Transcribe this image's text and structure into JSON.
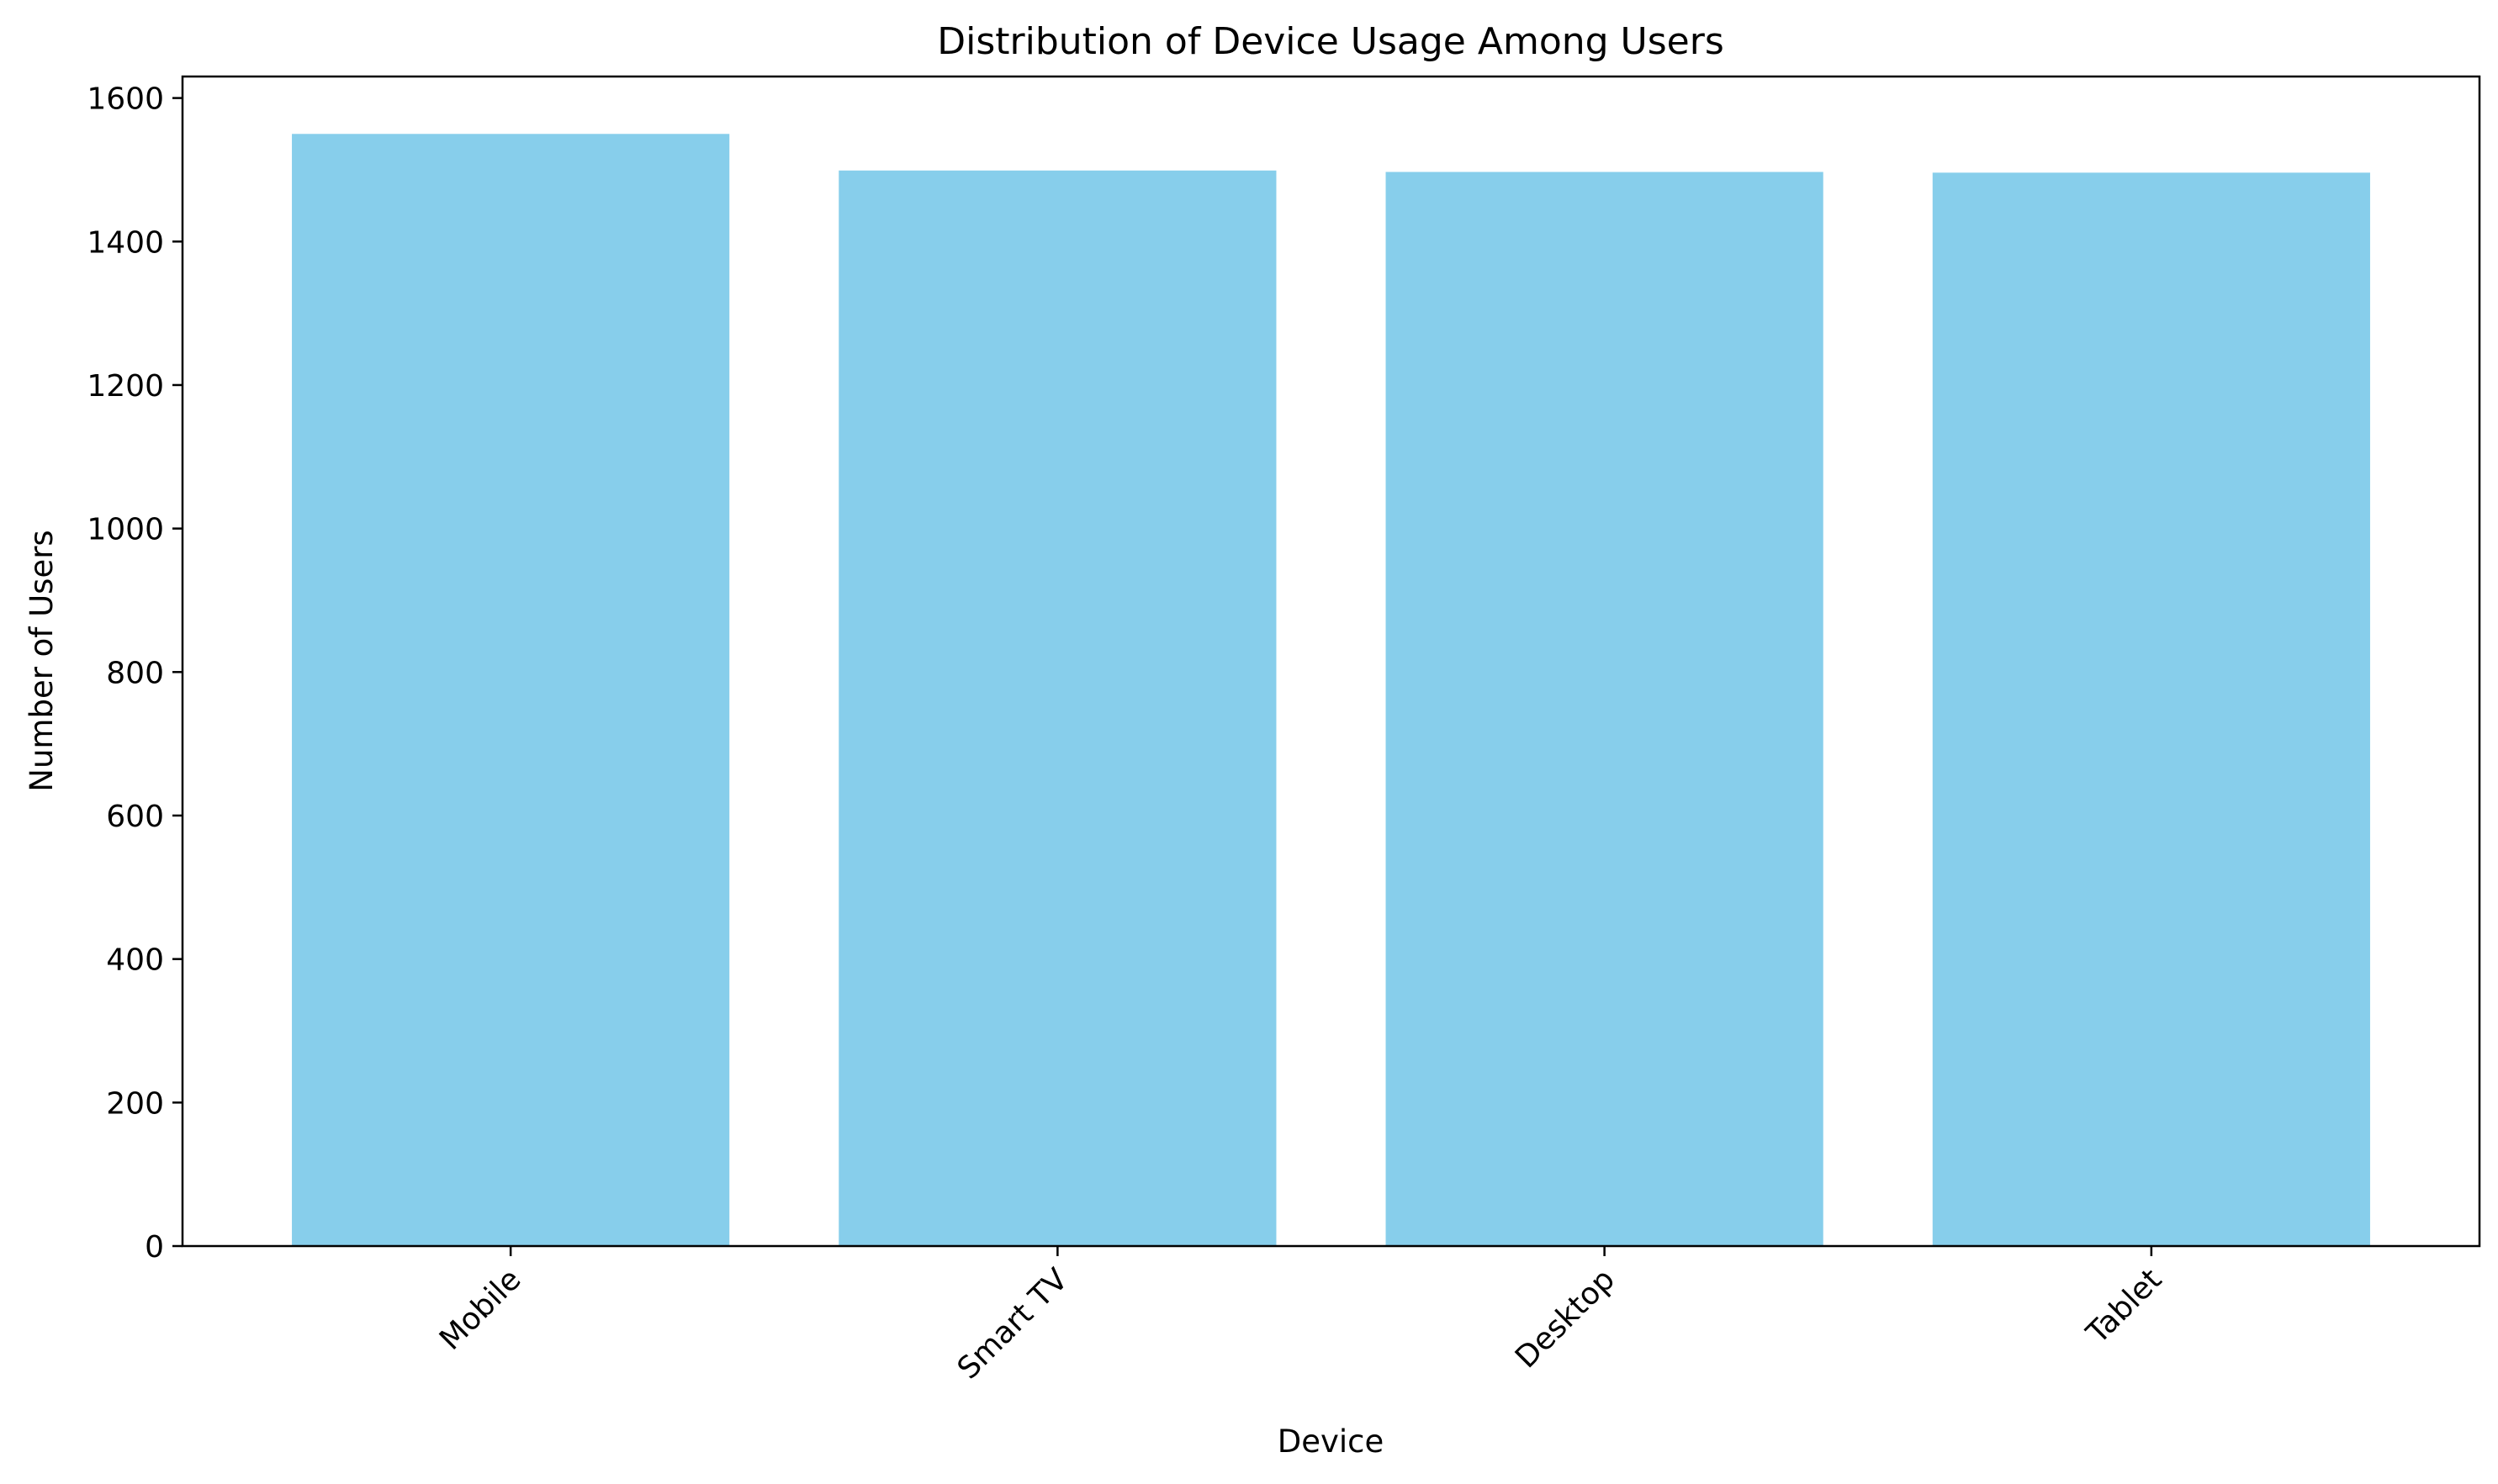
{
  "chart_data": {
    "type": "bar",
    "title": "Distribution of Device Usage Among Users",
    "xlabel": "Device",
    "ylabel": "Number of Users",
    "categories": [
      "Mobile",
      "Smart TV",
      "Desktop",
      "Tablet"
    ],
    "values": [
      1550,
      1499,
      1497,
      1496
    ],
    "ylim": [
      0,
      1630
    ],
    "yticks": [
      0,
      200,
      400,
      600,
      800,
      1000,
      1200,
      1400,
      1600
    ],
    "xtick_rotation": 45,
    "grid": false,
    "legend": "none",
    "bar_color": "#87CEEB"
  }
}
